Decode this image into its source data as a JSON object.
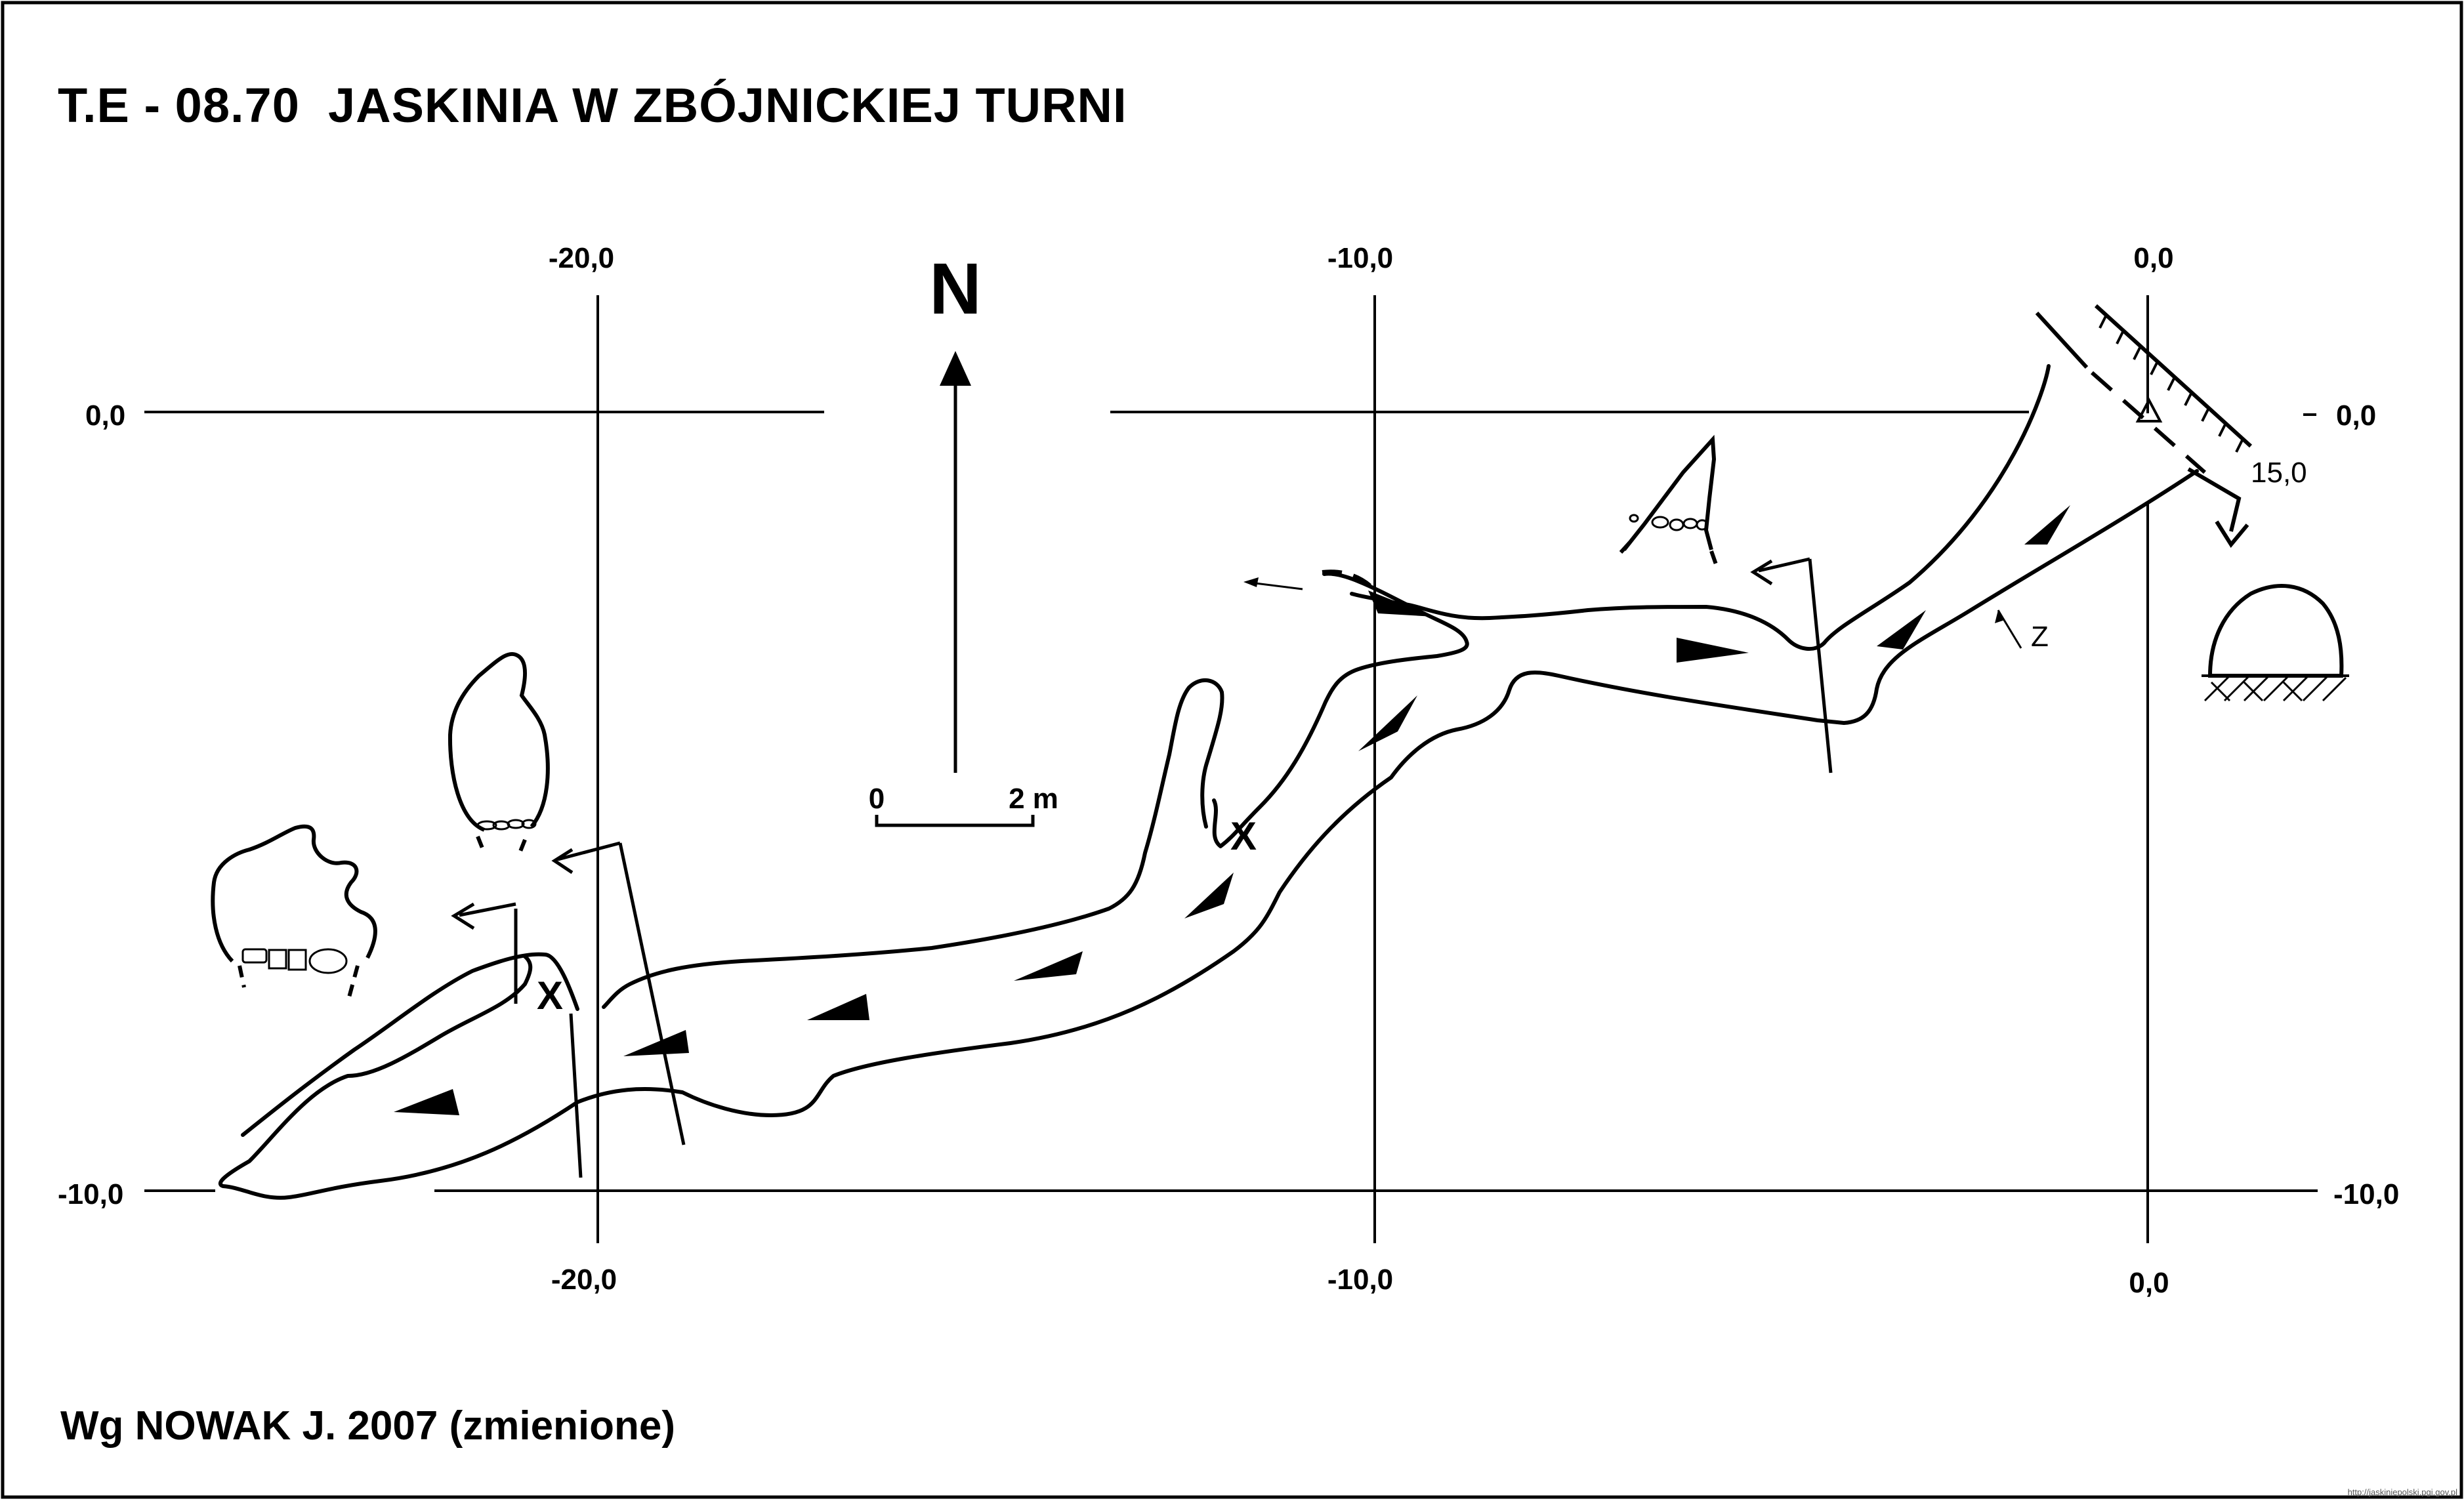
{
  "title": "T.E - 08.70  JASKINIA W ZBÓJNICKIEJ TURNI",
  "credit": "Wg NOWAK J. 2007 (zmienione)",
  "watermark": "http://jaskiniepolski.pgi.gov.pl",
  "north_label": "N",
  "scale_bar": {
    "start": "0",
    "end": "2 m"
  },
  "grid_labels": {
    "x_top": [
      "-20,0",
      "-10,0",
      "0,0"
    ],
    "x_bottom": [
      "-20,0",
      "-10,0",
      "0,0"
    ],
    "y_left": [
      "0,0",
      "-10,0"
    ],
    "y_right": [
      "0,0",
      "-10,0"
    ]
  },
  "annotations": {
    "station_height": "15,0",
    "z_marker": "Z",
    "x_marks": [
      "X",
      "X"
    ]
  },
  "colors": {
    "line": "#000000",
    "background": "#ffffff",
    "frame": "#000000"
  },
  "icons": [
    "north-arrow-icon",
    "entrance-triangle-icon",
    "passage-direction-arrow-icon",
    "cross-section-icon"
  ]
}
